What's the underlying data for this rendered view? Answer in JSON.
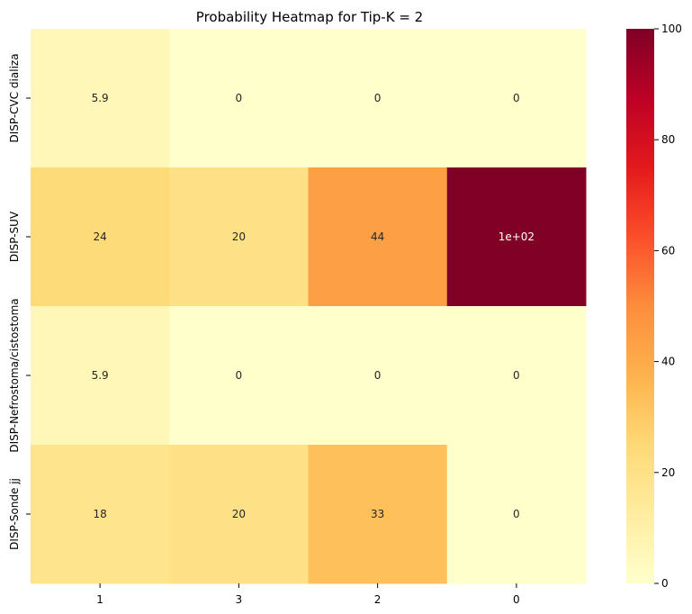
{
  "chart_data": {
    "type": "heatmap",
    "title": "Probability Heatmap for Tip-K = 2",
    "xlabel": "",
    "ylabel": "",
    "columns": [
      "1",
      "3",
      "2",
      "0"
    ],
    "rows": [
      "DISP-CVC dializa",
      "DISP-SUV",
      "DISP-Nefrostoma/cistostoma",
      "DISP-Sonde jj"
    ],
    "values": [
      [
        5.9,
        0,
        0,
        0
      ],
      [
        24,
        20,
        44,
        100
      ],
      [
        5.9,
        0,
        0,
        0
      ],
      [
        18,
        20,
        33,
        0
      ]
    ],
    "annotations": [
      [
        "5.9",
        "0",
        "0",
        "0"
      ],
      [
        "24",
        "20",
        "44",
        "1e+02"
      ],
      [
        "5.9",
        "0",
        "0",
        "0"
      ],
      [
        "18",
        "20",
        "33",
        "0"
      ]
    ],
    "colorbar": {
      "range": [
        0,
        100
      ],
      "ticks": [
        "0",
        "20",
        "40",
        "60",
        "80",
        "100"
      ],
      "colormap": "YlOrRd"
    }
  }
}
